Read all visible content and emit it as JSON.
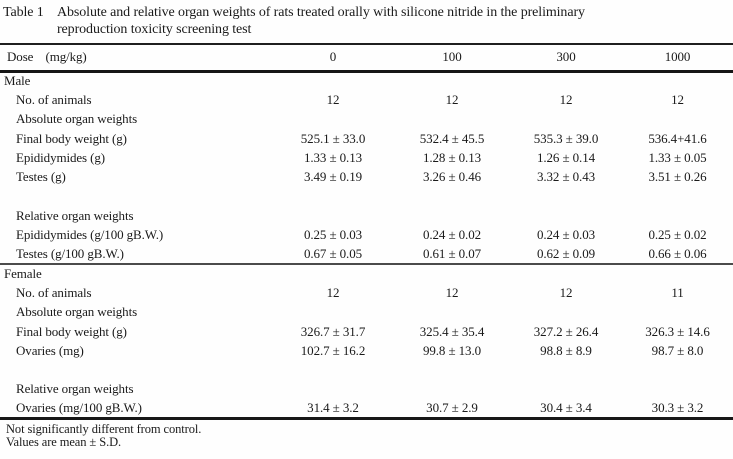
{
  "title": {
    "label": "Table 1",
    "line1": "Absolute and relative organ weights of rats treated orally with silicone nitride in the preliminary",
    "line2": "reproduction toxicity screening test"
  },
  "header": {
    "dose_label": "Dose",
    "dose_unit": "(mg/kg)",
    "doses": [
      "0",
      "100",
      "300",
      "1000"
    ]
  },
  "table": {
    "sections": [
      {
        "name": "Male",
        "rows": [
          {
            "label": "Male",
            "indent": false
          },
          {
            "label": "No. of animals",
            "indent": true,
            "values": [
              "12",
              "12",
              "12",
              "12"
            ]
          },
          {
            "label": "Absolute organ weights",
            "indent": true
          },
          {
            "label": "Final body weight (g)",
            "indent": true,
            "values": [
              "525.1 ± 33.0",
              "532.4 ± 45.5",
              "535.3 ± 39.0",
              "536.4+41.6"
            ]
          },
          {
            "label": "Epididymides (g)",
            "indent": true,
            "values": [
              "1.33 ± 0.13",
              "1.28 ± 0.13",
              "1.26 ± 0.14",
              "1.33 ± 0.05"
            ]
          },
          {
            "label": "Testes (g)",
            "indent": true,
            "values": [
              "3.49 ± 0.19",
              "3.26 ± 0.46",
              "3.32 ± 0.43",
              "3.51 ± 0.26"
            ]
          },
          {
            "blank": true
          },
          {
            "label": "Relative organ weights",
            "indent": true
          },
          {
            "label": "Epididymides (g/100 gB.W.)",
            "indent": true,
            "values": [
              "0.25 ± 0.03",
              "0.24 ± 0.02",
              "0.24 ± 0.03",
              "0.25 ± 0.02"
            ]
          },
          {
            "label": "Testes (g/100 gB.W.)",
            "indent": true,
            "values": [
              "0.67 ± 0.05",
              "0.61 ± 0.07",
              "0.62 ± 0.09",
              "0.66 ± 0.06"
            ]
          }
        ]
      },
      {
        "name": "Female",
        "rows": [
          {
            "label": "Female",
            "indent": false
          },
          {
            "label": "No. of animals",
            "indent": true,
            "values": [
              "12",
              "12",
              "12",
              "11"
            ]
          },
          {
            "label": "Absolute organ weights",
            "indent": true
          },
          {
            "label": "Final body weight (g)",
            "indent": true,
            "values": [
              "326.7 ± 31.7",
              "325.4 ± 35.4",
              "327.2 ± 26.4",
              "326.3 ± 14.6"
            ]
          },
          {
            "label": "Ovaries (mg)",
            "indent": true,
            "values": [
              "102.7 ± 16.2",
              "99.8 ± 13.0",
              "98.8 ± 8.9",
              "98.7 ± 8.0"
            ]
          },
          {
            "blank": true
          },
          {
            "label": "Relative organ weights",
            "indent": true
          },
          {
            "label": "Ovaries (mg/100 gB.W.)",
            "indent": true,
            "values": [
              "31.4 ± 3.2",
              "30.7 ± 2.9",
              "30.4 ± 3.4",
              "30.3 ± 3.2"
            ]
          }
        ]
      }
    ]
  },
  "footnotes": [
    "Not significantly different from control.",
    "Values are mean ± S.D."
  ]
}
